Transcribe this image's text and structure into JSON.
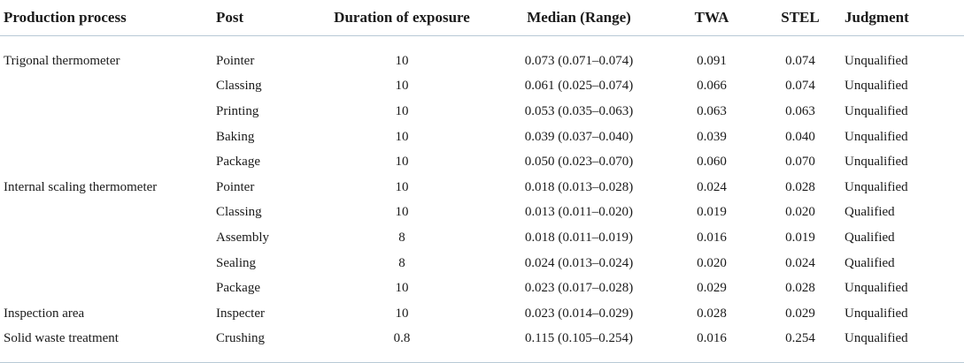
{
  "table": {
    "headers": {
      "process": "Production process",
      "post": "Post",
      "duration": "Duration of exposure",
      "median": "Median (Range)",
      "twa": "TWA",
      "stel": "STEL",
      "judgment": "Judgment"
    },
    "rows": [
      {
        "process": "Trigonal thermometer",
        "post": "Pointer",
        "duration": "10",
        "median": "0.073 (0.071–0.074)",
        "twa": "0.091",
        "stel": "0.074",
        "judgment": "Unqualified"
      },
      {
        "process": "",
        "post": "Classing",
        "duration": "10",
        "median": "0.061 (0.025–0.074)",
        "twa": "0.066",
        "stel": "0.074",
        "judgment": "Unqualified"
      },
      {
        "process": "",
        "post": "Printing",
        "duration": "10",
        "median": "0.053 (0.035–0.063)",
        "twa": "0.063",
        "stel": "0.063",
        "judgment": "Unqualified"
      },
      {
        "process": "",
        "post": "Baking",
        "duration": "10",
        "median": "0.039 (0.037–0.040)",
        "twa": "0.039",
        "stel": "0.040",
        "judgment": "Unqualified"
      },
      {
        "process": "",
        "post": "Package",
        "duration": "10",
        "median": "0.050 (0.023–0.070)",
        "twa": "0.060",
        "stel": "0.070",
        "judgment": "Unqualified"
      },
      {
        "process": "Internal scaling thermometer",
        "post": "Pointer",
        "duration": "10",
        "median": "0.018 (0.013–0.028)",
        "twa": "0.024",
        "stel": "0.028",
        "judgment": "Unqualified"
      },
      {
        "process": "",
        "post": "Classing",
        "duration": "10",
        "median": "0.013 (0.011–0.020)",
        "twa": "0.019",
        "stel": "0.020",
        "judgment": "Qualified"
      },
      {
        "process": "",
        "post": "Assembly",
        "duration": "8",
        "median": "0.018 (0.011–0.019)",
        "twa": "0.016",
        "stel": "0.019",
        "judgment": "Qualified"
      },
      {
        "process": "",
        "post": "Sealing",
        "duration": "8",
        "median": "0.024 (0.013–0.024)",
        "twa": "0.020",
        "stel": "0.024",
        "judgment": "Qualified"
      },
      {
        "process": "",
        "post": "Package",
        "duration": "10",
        "median": "0.023 (0.017–0.028)",
        "twa": "0.029",
        "stel": "0.028",
        "judgment": "Unqualified"
      },
      {
        "process": "Inspection area",
        "post": "Inspecter",
        "duration": "10",
        "median": "0.023 (0.014–0.029)",
        "twa": "0.028",
        "stel": "0.029",
        "judgment": "Unqualified"
      },
      {
        "process": "Solid waste treatment",
        "post": "Crushing",
        "duration": "0.8",
        "median": "0.115 (0.105–0.254)",
        "twa": "0.016",
        "stel": "0.254",
        "judgment": "Unqualified"
      }
    ]
  }
}
